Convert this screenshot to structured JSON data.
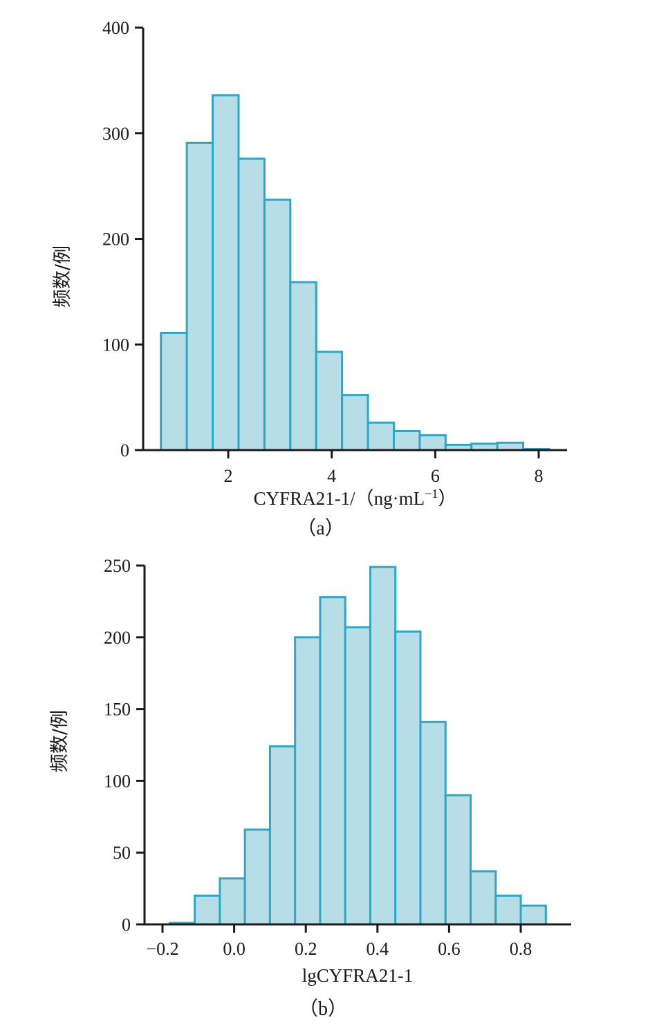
{
  "chart_data": [
    {
      "type": "bar",
      "subtype": "histogram",
      "caption": "（a）",
      "xlabel": "CYFRA21-1/（ng·mL",
      "xlabel_superscript": "−1",
      "xlabel_close": "）",
      "ylabel": "频数/例",
      "xlim": [
        0.2,
        8.5
      ],
      "ylim": [
        0,
        400
      ],
      "x_ticks": [
        2,
        4,
        6,
        8
      ],
      "x_tick_labels": [
        "2",
        "4",
        "6",
        "8"
      ],
      "y_ticks": [
        0,
        100,
        200,
        300,
        400
      ],
      "y_tick_labels": [
        "0",
        "100",
        "200",
        "300",
        "400"
      ],
      "bin_edges": [
        0.7,
        1.2,
        1.7,
        2.2,
        2.7,
        3.2,
        3.7,
        4.2,
        4.7,
        5.2,
        5.7,
        6.2,
        6.7,
        7.2,
        7.7,
        8.2
      ],
      "values": [
        111,
        291,
        336,
        276,
        237,
        159,
        93,
        52,
        26,
        18,
        14,
        5,
        6,
        7,
        1
      ]
    },
    {
      "type": "bar",
      "subtype": "histogram",
      "caption": "（b）",
      "xlabel": "lgCYFRA21-1",
      "ylabel": "频数/例",
      "xlim": [
        -0.25,
        0.95
      ],
      "ylim": [
        0,
        250
      ],
      "x_ticks": [
        -0.2,
        0.0,
        0.2,
        0.4,
        0.6,
        0.8
      ],
      "x_tick_labels": [
        "−0.2",
        "0.0",
        "0.2",
        "0.4",
        "0.6",
        "0.8"
      ],
      "y_ticks": [
        0,
        50,
        100,
        150,
        200,
        250
      ],
      "y_tick_labels": [
        "0",
        "50",
        "100",
        "150",
        "200",
        "250"
      ],
      "bin_edges": [
        -0.18,
        -0.11,
        -0.04,
        0.03,
        0.1,
        0.17,
        0.24,
        0.31,
        0.38,
        0.45,
        0.52,
        0.59,
        0.66,
        0.73,
        0.8,
        0.87
      ],
      "values": [
        1,
        20,
        32,
        66,
        124,
        200,
        228,
        207,
        249,
        204,
        141,
        90,
        37,
        20,
        13
      ]
    }
  ]
}
